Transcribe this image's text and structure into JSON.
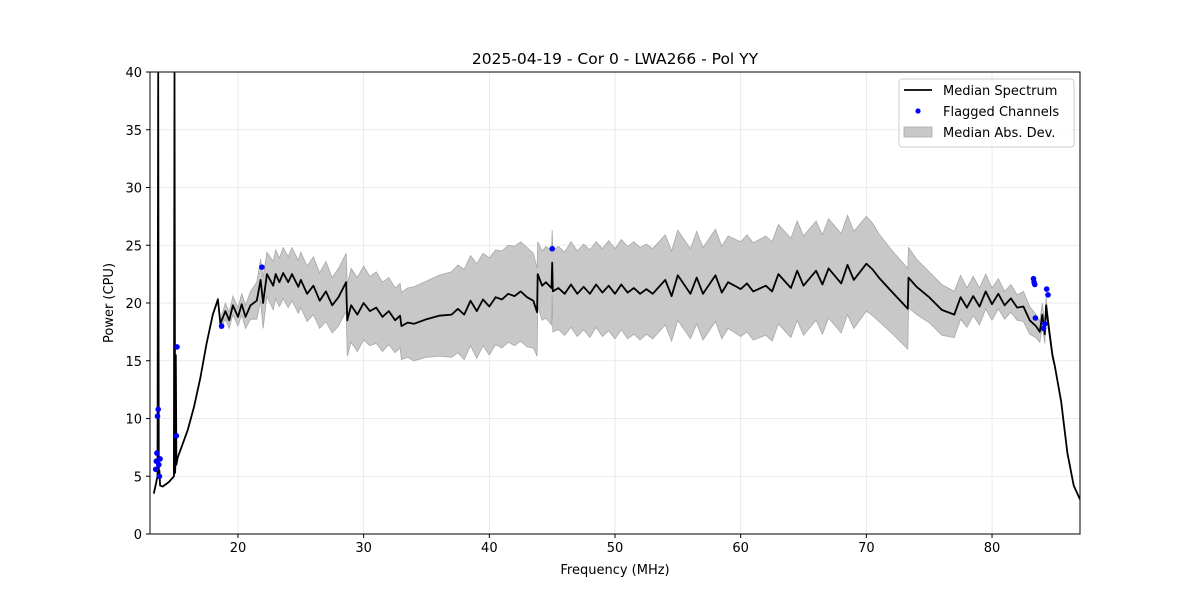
{
  "chart_data": {
    "type": "line",
    "title": "2025-04-19 - Cor 0 - LWA266 - Pol YY",
    "xlabel": "Frequency (MHz)",
    "ylabel": "Power (CPU)",
    "xlim": [
      13.0,
      87.0
    ],
    "ylim": [
      0,
      40
    ],
    "x_ticks": [
      20,
      30,
      40,
      50,
      60,
      70,
      80
    ],
    "x_tick_labels": [
      "20",
      "30",
      "40",
      "50",
      "60",
      "70",
      "80"
    ],
    "y_ticks": [
      0,
      5,
      10,
      15,
      20,
      25,
      30,
      35,
      40
    ],
    "y_tick_labels": [
      "0",
      "5",
      "10",
      "15",
      "20",
      "25",
      "30",
      "35",
      "40"
    ],
    "grid": true,
    "legend": {
      "placement": "top-right",
      "entries": [
        {
          "label": "Median Spectrum",
          "kind": "line",
          "color": "#000000"
        },
        {
          "label": "Flagged Channels",
          "kind": "marker",
          "color": "#0000ff"
        },
        {
          "label": "Median Abs. Dev.",
          "kind": "patch",
          "color": "#c8c8c8"
        }
      ]
    },
    "series": [
      {
        "name": "Median Spectrum",
        "color": "#000000",
        "x": [
          13.3,
          13.5,
          13.6,
          13.65,
          13.7,
          13.75,
          13.8,
          14.0,
          14.5,
          14.9,
          14.95,
          15.0,
          15.05,
          15.1,
          15.15,
          15.2,
          15.5,
          16.0,
          16.5,
          17.0,
          17.5,
          18.0,
          18.4,
          18.6,
          19.0,
          19.3,
          19.6,
          20.0,
          20.3,
          20.6,
          21.0,
          21.5,
          21.8,
          22.0,
          22.3,
          22.8,
          23.0,
          23.3,
          23.6,
          24.0,
          24.3,
          24.8,
          25.0,
          25.5,
          26.0,
          26.5,
          27.0,
          27.5,
          28.0,
          28.6,
          28.7,
          29.0,
          29.5,
          30.0,
          30.5,
          31.0,
          31.5,
          32.0,
          32.5,
          32.9,
          33.0,
          33.5,
          34.0,
          35.0,
          36.0,
          37.0,
          37.5,
          38.0,
          38.5,
          39.0,
          39.5,
          40.0,
          40.5,
          41.0,
          41.5,
          42.0,
          42.5,
          43.0,
          43.5,
          43.8,
          43.85,
          44.2,
          44.5,
          44.95,
          45.0,
          45.05,
          45.5,
          46.0,
          46.5,
          47.0,
          47.5,
          48.0,
          48.5,
          49.0,
          49.5,
          50.0,
          50.5,
          51.0,
          51.5,
          52.0,
          52.5,
          53.0,
          54.0,
          54.5,
          55.0,
          56.0,
          56.5,
          57.0,
          58.0,
          58.5,
          59.0,
          60.0,
          60.5,
          61.0,
          62.0,
          62.5,
          63.0,
          64.0,
          64.5,
          65.0,
          66.0,
          66.5,
          67.0,
          68.0,
          68.5,
          69.0,
          70.0,
          70.5,
          71.0,
          72.0,
          73.3,
          73.35,
          74.0,
          75.0,
          76.0,
          77.0,
          77.5,
          78.0,
          78.5,
          79.0,
          79.5,
          80.0,
          80.5,
          81.0,
          81.5,
          82.0,
          82.5,
          83.0,
          83.5,
          83.8,
          84.0,
          84.2,
          84.3,
          84.5,
          84.8,
          85.0,
          85.5,
          86.0,
          86.5,
          87.0
        ],
        "values": [
          3.5,
          4.5,
          5.0,
          40.0,
          5.0,
          5.5,
          4.2,
          4.1,
          4.5,
          5.0,
          40.0,
          5.3,
          15.5,
          6.0,
          6.3,
          6.6,
          7.5,
          9.0,
          11.0,
          13.5,
          16.5,
          19.0,
          20.3,
          18.2,
          19.3,
          18.5,
          19.8,
          18.8,
          19.9,
          18.8,
          19.8,
          20.2,
          22.0,
          20.0,
          22.5,
          21.5,
          22.5,
          21.8,
          22.6,
          21.8,
          22.5,
          21.4,
          22.0,
          20.8,
          21.5,
          20.2,
          21.0,
          19.8,
          20.5,
          21.8,
          18.5,
          19.8,
          19.0,
          20.0,
          19.3,
          19.6,
          18.8,
          19.3,
          18.5,
          18.9,
          18.0,
          18.3,
          18.2,
          18.6,
          18.9,
          19.0,
          19.5,
          19.0,
          20.2,
          19.3,
          20.3,
          19.7,
          20.5,
          20.3,
          20.8,
          20.6,
          21.0,
          20.5,
          20.2,
          19.2,
          22.5,
          21.5,
          21.8,
          21.3,
          23.5,
          21.0,
          21.3,
          20.8,
          21.6,
          20.8,
          21.4,
          20.8,
          21.6,
          20.9,
          21.5,
          20.8,
          21.6,
          20.9,
          21.3,
          20.8,
          21.2,
          20.8,
          22.0,
          20.6,
          22.4,
          20.8,
          22.2,
          20.8,
          22.4,
          20.9,
          21.8,
          21.2,
          21.7,
          21.0,
          21.5,
          21.0,
          22.5,
          21.3,
          22.8,
          21.5,
          22.8,
          21.6,
          23.0,
          21.7,
          23.3,
          22.0,
          23.4,
          22.9,
          22.2,
          21.0,
          19.5,
          22.2,
          21.4,
          20.5,
          19.4,
          19.0,
          20.5,
          19.6,
          20.6,
          19.7,
          21.0,
          19.9,
          20.8,
          19.8,
          20.4,
          19.6,
          19.7,
          18.5,
          18.0,
          17.5,
          19.0,
          17.3,
          19.8,
          18.0,
          15.5,
          14.5,
          11.5,
          7.0,
          4.2,
          3.0
        ],
        "mad_upper": [
          3.5,
          4.5,
          5.0,
          5.0,
          5.0,
          5.5,
          4.2,
          4.1,
          4.5,
          5.0,
          5.0,
          5.3,
          5.5,
          6.0,
          6.3,
          6.6,
          7.5,
          9.0,
          11.0,
          13.5,
          16.5,
          19.0,
          20.5,
          18.6,
          20.0,
          19.2,
          20.6,
          19.6,
          20.8,
          19.8,
          21.0,
          21.8,
          23.8,
          22.2,
          24.4,
          23.6,
          24.6,
          23.9,
          24.8,
          24.0,
          24.8,
          23.7,
          24.4,
          23.2,
          24.0,
          22.6,
          23.6,
          22.2,
          23.0,
          24.3,
          21.6,
          23.0,
          22.2,
          23.2,
          22.3,
          22.7,
          21.8,
          22.2,
          21.3,
          21.7,
          20.9,
          21.3,
          21.4,
          21.9,
          22.4,
          22.7,
          23.3,
          22.9,
          24.1,
          23.4,
          24.3,
          23.9,
          24.6,
          24.5,
          25.0,
          24.9,
          25.3,
          24.8,
          24.3,
          23.0,
          25.3,
          24.5,
          24.9,
          24.5,
          26.3,
          24.5,
          24.9,
          24.4,
          25.3,
          24.5,
          25.1,
          24.6,
          25.3,
          24.7,
          25.4,
          24.7,
          25.5,
          24.9,
          25.3,
          24.8,
          25.1,
          24.7,
          25.9,
          24.5,
          26.3,
          24.7,
          26.2,
          24.8,
          26.4,
          24.9,
          25.8,
          25.3,
          25.9,
          25.2,
          25.8,
          25.3,
          26.8,
          25.6,
          27.1,
          25.8,
          27.1,
          25.9,
          27.3,
          26.0,
          27.6,
          26.2,
          27.5,
          26.9,
          26.0,
          24.6,
          23.0,
          24.8,
          23.8,
          22.7,
          21.6,
          21.0,
          22.4,
          21.3,
          22.3,
          21.3,
          22.5,
          21.3,
          22.1,
          21.0,
          21.6,
          20.7,
          21.0,
          19.7,
          19.0,
          18.4,
          20.0,
          18.1,
          20.5,
          18.5,
          15.8,
          14.6,
          11.5,
          7.0,
          4.2,
          3.0
        ],
        "mad_lower": [
          3.5,
          4.5,
          5.0,
          5.0,
          5.0,
          5.5,
          4.2,
          4.1,
          4.5,
          5.0,
          5.0,
          5.3,
          5.5,
          6.0,
          6.3,
          6.6,
          7.5,
          9.0,
          11.0,
          13.5,
          16.5,
          19.0,
          20.1,
          17.8,
          18.6,
          17.8,
          19.0,
          18.0,
          19.0,
          17.8,
          18.6,
          18.6,
          20.2,
          17.8,
          20.6,
          19.4,
          20.4,
          19.7,
          20.4,
          19.6,
          20.2,
          19.1,
          19.6,
          18.4,
          19.0,
          17.8,
          18.4,
          17.4,
          18.0,
          19.3,
          15.4,
          16.6,
          15.8,
          16.8,
          16.3,
          16.5,
          15.8,
          16.4,
          15.7,
          16.1,
          15.1,
          15.3,
          15.0,
          15.3,
          15.4,
          15.3,
          15.7,
          15.1,
          16.3,
          15.2,
          16.3,
          15.5,
          16.4,
          16.1,
          16.6,
          16.3,
          16.7,
          16.2,
          16.1,
          15.4,
          19.7,
          18.5,
          18.7,
          18.1,
          20.7,
          17.5,
          17.7,
          17.2,
          17.9,
          17.1,
          17.7,
          17.0,
          17.9,
          17.1,
          17.6,
          16.9,
          17.7,
          16.9,
          17.3,
          16.8,
          17.3,
          16.9,
          18.1,
          16.7,
          18.5,
          16.9,
          18.2,
          16.8,
          18.4,
          16.9,
          17.8,
          17.1,
          17.5,
          16.8,
          17.2,
          16.7,
          18.2,
          17.0,
          18.5,
          17.2,
          18.5,
          17.3,
          18.7,
          17.4,
          19.0,
          17.8,
          19.3,
          18.9,
          18.4,
          17.4,
          16.0,
          19.6,
          19.0,
          18.3,
          17.2,
          17.0,
          18.6,
          17.9,
          18.9,
          18.1,
          19.5,
          18.5,
          19.5,
          18.6,
          19.2,
          18.5,
          18.4,
          17.3,
          17.0,
          16.6,
          18.0,
          16.5,
          19.1,
          17.5,
          15.2,
          14.4,
          11.5,
          7.0,
          4.2,
          3.0
        ]
      },
      {
        "name": "Flagged Channels",
        "color": "#0000ff",
        "x": [
          13.45,
          13.5,
          13.55,
          13.6,
          13.65,
          13.7,
          13.75,
          13.8,
          15.1,
          15.15,
          18.7,
          21.9,
          45.0,
          83.3,
          83.35,
          83.4,
          83.45,
          84.1,
          84.2,
          84.35,
          84.45
        ],
        "values": [
          5.6,
          6.3,
          7.0,
          10.2,
          10.8,
          6.0,
          5.0,
          6.5,
          8.5,
          16.2,
          18.0,
          23.1,
          24.7,
          22.1,
          21.8,
          21.6,
          18.7,
          17.8,
          18.2,
          21.2,
          20.7
        ]
      }
    ]
  }
}
